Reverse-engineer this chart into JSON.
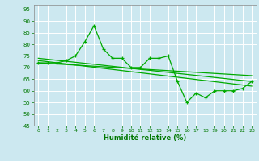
{
  "xlabel": "Humidité relative (%)",
  "bg_color": "#cce8f0",
  "grid_color": "#aacccc",
  "line_color": "#00aa00",
  "xlim": [
    -0.5,
    23.5
  ],
  "ylim": [
    45,
    97
  ],
  "yticks": [
    45,
    50,
    55,
    60,
    65,
    70,
    75,
    80,
    85,
    90,
    95
  ],
  "xticks": [
    0,
    1,
    2,
    3,
    4,
    5,
    6,
    7,
    8,
    9,
    10,
    11,
    12,
    13,
    14,
    15,
    16,
    17,
    18,
    19,
    20,
    21,
    22,
    23
  ],
  "main_x": [
    0,
    1,
    2,
    3,
    4,
    5,
    6,
    7,
    8,
    9,
    10,
    11,
    12,
    13,
    14,
    15,
    16,
    17,
    18,
    19,
    20,
    21,
    22,
    23
  ],
  "main_y": [
    72,
    72,
    72,
    73,
    75,
    81,
    88,
    78,
    74,
    74,
    70,
    70,
    74,
    74,
    75,
    64,
    55,
    59,
    57,
    60,
    60,
    60,
    61,
    64
  ],
  "trend1_x": [
    0,
    23
  ],
  "trend1_y": [
    74.0,
    64.0
  ],
  "trend2_x": [
    0,
    23
  ],
  "trend2_y": [
    73.0,
    62.0
  ],
  "trend3_x": [
    0,
    23
  ],
  "trend3_y": [
    72.0,
    66.5
  ]
}
